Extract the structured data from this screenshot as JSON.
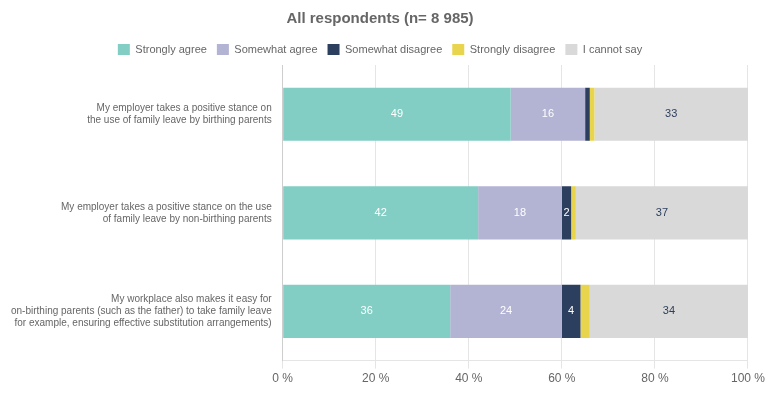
{
  "chart_data": {
    "type": "bar",
    "orientation": "horizontal",
    "stacked": true,
    "title": "All respondents (n= 8 985)",
    "categories": [
      "My employer takes a positive stance on\nthe use of family leave by birthing parents",
      "My employer takes a positive stance on the use\nof family leave by non-birthing parents",
      "My workplace also makes it easy for\non-birthing parents (such as the father) to take family leave\nfor example, ensuring effective substitution arrangements)"
    ],
    "series": [
      {
        "name": "Strongly agree",
        "color": "#82cec4",
        "values": [
          49,
          42,
          36
        ],
        "data_labels": true
      },
      {
        "name": "Somewhat agree",
        "color": "#b3b3d4",
        "values": [
          16,
          18,
          24
        ],
        "data_labels": true
      },
      {
        "name": "Somewhat disagree",
        "color": "#2d3f5e",
        "values": [
          1,
          2,
          4
        ],
        "data_labels": true,
        "value_labels": [
          null,
          "2",
          "4"
        ]
      },
      {
        "name": "Strongly disagree",
        "color": "#e8d44d",
        "values": [
          1,
          1,
          2
        ]
      },
      {
        "name": "I cannot say",
        "color": "#d9d9d9",
        "values": [
          33,
          37,
          34
        ],
        "data_labels": true
      }
    ],
    "xlim": [
      0,
      100
    ],
    "xticks": [
      {
        "value": 0,
        "label": "0 %"
      },
      {
        "value": 20,
        "label": "20 %"
      },
      {
        "value": 40,
        "label": "40 %"
      },
      {
        "value": 60,
        "label": "60 %"
      },
      {
        "value": 80,
        "label": "80 %"
      },
      {
        "value": 100,
        "label": "100 %"
      }
    ],
    "grid": true,
    "legend": "top"
  }
}
